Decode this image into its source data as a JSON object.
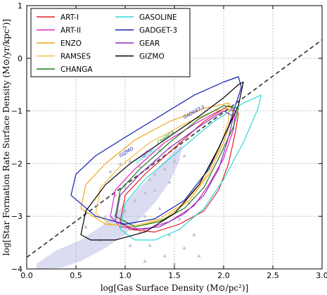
{
  "chart_data": {
    "type": "line",
    "xlabel": "log[Gas Surface Density (M⊙/pc²)]",
    "ylabel": "log[Star Formation Rate Surface Density (M⊙/yr/kpc²)]",
    "xlim": [
      0.0,
      3.0
    ],
    "ylim": [
      -4.0,
      1.0
    ],
    "xticks": [
      "0.0",
      "0.5",
      "1.0",
      "1.5",
      "2.0",
      "2.5",
      "3.0"
    ],
    "yticks": [
      "−4",
      "−3",
      "−2",
      "−1",
      "0",
      "1"
    ],
    "grid": true,
    "legend_position": "top-left",
    "reference_line": {
      "style": "dashed",
      "color": "#444444",
      "x": [
        0.0,
        3.0
      ],
      "y": [
        -3.78,
        0.35
      ]
    },
    "observations": {
      "color": "#aeb2e0",
      "shaded_region": [
        [
          0.1,
          -3.9
        ],
        [
          0.3,
          -3.65
        ],
        [
          0.55,
          -3.45
        ],
        [
          0.75,
          -3.2
        ],
        [
          0.95,
          -2.85
        ],
        [
          1.15,
          -2.45
        ],
        [
          1.35,
          -2.05
        ],
        [
          1.5,
          -1.75
        ],
        [
          1.58,
          -1.65
        ],
        [
          1.55,
          -1.95
        ],
        [
          1.45,
          -2.35
        ],
        [
          1.3,
          -2.75
        ],
        [
          1.15,
          -3.05
        ],
        [
          1.0,
          -3.35
        ],
        [
          0.8,
          -3.6
        ],
        [
          0.55,
          -3.85
        ],
        [
          0.35,
          -3.98
        ],
        [
          0.1,
          -4.0
        ]
      ],
      "triangles": [
        [
          0.85,
          -2.15
        ],
        [
          0.95,
          -2.0
        ],
        [
          1.05,
          -1.95
        ],
        [
          1.1,
          -2.25
        ],
        [
          1.15,
          -2.05
        ],
        [
          1.2,
          -1.85
        ],
        [
          1.25,
          -2.3
        ],
        [
          1.3,
          -1.95
        ],
        [
          1.35,
          -1.75
        ],
        [
          1.4,
          -2.1
        ],
        [
          1.45,
          -1.7
        ],
        [
          1.5,
          -1.95
        ],
        [
          1.55,
          -1.6
        ],
        [
          1.6,
          -1.85
        ],
        [
          1.2,
          -2.55
        ],
        [
          1.0,
          -2.45
        ],
        [
          0.9,
          -2.6
        ],
        [
          1.1,
          -2.7
        ],
        [
          1.3,
          -2.5
        ],
        [
          1.45,
          -2.35
        ],
        [
          1.0,
          -2.9
        ],
        [
          1.2,
          -3.0
        ],
        [
          0.95,
          -3.2
        ],
        [
          1.15,
          -3.3
        ],
        [
          1.35,
          -2.85
        ],
        [
          1.05,
          -3.55
        ],
        [
          1.25,
          -3.55
        ],
        [
          1.45,
          -3.35
        ],
        [
          1.55,
          -3.05
        ],
        [
          1.4,
          -3.75
        ],
        [
          1.2,
          -3.85
        ],
        [
          1.6,
          -3.6
        ],
        [
          1.5,
          -3.9
        ],
        [
          1.7,
          -3.35
        ],
        [
          1.75,
          -3.75
        ],
        [
          1.65,
          -2.75
        ],
        [
          0.8,
          -3.0
        ],
        [
          0.75,
          -3.45
        ],
        [
          0.6,
          -3.2
        ],
        [
          1.3,
          -2.2
        ]
      ]
    },
    "series": [
      {
        "name": "ART-I",
        "color": "#e0202a",
        "points": [
          [
            0.95,
            -3.1
          ],
          [
            1.0,
            -2.6
          ],
          [
            1.2,
            -2.2
          ],
          [
            1.5,
            -1.7
          ],
          [
            1.8,
            -1.2
          ],
          [
            2.05,
            -0.9
          ],
          [
            2.15,
            -1.05
          ],
          [
            2.12,
            -1.4
          ],
          [
            2.05,
            -2.0
          ],
          [
            1.95,
            -2.5
          ],
          [
            1.8,
            -2.9
          ],
          [
            1.55,
            -3.15
          ],
          [
            1.3,
            -3.3
          ],
          [
            1.05,
            -3.25
          ]
        ]
      },
      {
        "name": "ART-II",
        "color": "#e020c8",
        "points": [
          [
            0.85,
            -3.0
          ],
          [
            0.9,
            -2.5
          ],
          [
            1.1,
            -2.1
          ],
          [
            1.4,
            -1.6
          ],
          [
            1.75,
            -1.2
          ],
          [
            2.0,
            -0.95
          ],
          [
            2.12,
            -1.0
          ],
          [
            2.1,
            -1.35
          ],
          [
            2.0,
            -1.9
          ],
          [
            1.85,
            -2.4
          ],
          [
            1.7,
            -2.8
          ],
          [
            1.45,
            -3.1
          ],
          [
            1.2,
            -3.25
          ],
          [
            0.95,
            -3.2
          ]
        ]
      },
      {
        "name": "ENZO",
        "color": "#f2a51c",
        "points": [
          [
            0.55,
            -2.85
          ],
          [
            0.6,
            -2.4
          ],
          [
            0.8,
            -2.0
          ],
          [
            1.1,
            -1.55
          ],
          [
            1.45,
            -1.2
          ],
          [
            1.8,
            -0.95
          ],
          [
            2.05,
            -0.85
          ],
          [
            2.1,
            -1.05
          ],
          [
            2.0,
            -1.6
          ],
          [
            1.85,
            -2.2
          ],
          [
            1.65,
            -2.7
          ],
          [
            1.4,
            -3.05
          ],
          [
            1.1,
            -3.2
          ],
          [
            0.8,
            -3.15
          ]
        ]
      },
      {
        "name": "RAMSES",
        "color": "#f0c040",
        "points": [
          [
            0.7,
            -2.95
          ],
          [
            0.75,
            -2.45
          ],
          [
            0.95,
            -2.05
          ],
          [
            1.25,
            -1.6
          ],
          [
            1.6,
            -1.25
          ],
          [
            1.9,
            -1.0
          ],
          [
            2.05,
            -0.95
          ],
          [
            2.05,
            -1.2
          ],
          [
            1.95,
            -1.75
          ],
          [
            1.8,
            -2.3
          ],
          [
            1.6,
            -2.75
          ],
          [
            1.35,
            -3.05
          ],
          [
            1.05,
            -3.2
          ],
          [
            0.85,
            -3.15
          ]
        ]
      },
      {
        "name": "CHANGA",
        "color": "#1a7a1a",
        "points": [
          [
            0.9,
            -3.0
          ],
          [
            0.95,
            -2.5
          ],
          [
            1.15,
            -2.1
          ],
          [
            1.45,
            -1.6
          ],
          [
            1.75,
            -1.15
          ],
          [
            2.0,
            -0.9
          ],
          [
            2.15,
            -0.95
          ],
          [
            2.1,
            -1.3
          ],
          [
            1.95,
            -1.9
          ],
          [
            1.8,
            -2.45
          ],
          [
            1.6,
            -2.85
          ],
          [
            1.35,
            -3.1
          ],
          [
            1.1,
            -3.2
          ]
        ]
      },
      {
        "name": "GASOLINE",
        "color": "#30d8d8",
        "points": [
          [
            0.95,
            -3.25
          ],
          [
            1.0,
            -2.75
          ],
          [
            1.2,
            -2.3
          ],
          [
            1.55,
            -1.75
          ],
          [
            1.9,
            -1.2
          ],
          [
            2.2,
            -0.85
          ],
          [
            2.38,
            -0.7
          ],
          [
            2.35,
            -0.95
          ],
          [
            2.2,
            -1.6
          ],
          [
            2.0,
            -2.3
          ],
          [
            1.8,
            -2.85
          ],
          [
            1.55,
            -3.25
          ],
          [
            1.3,
            -3.45
          ],
          [
            1.1,
            -3.45
          ]
        ]
      },
      {
        "name": "GADGET-3",
        "color": "#1020b0",
        "points": [
          [
            0.45,
            -2.6
          ],
          [
            0.5,
            -2.2
          ],
          [
            0.7,
            -1.85
          ],
          [
            1.0,
            -1.5
          ],
          [
            1.35,
            -1.1
          ],
          [
            1.7,
            -0.7
          ],
          [
            2.0,
            -0.45
          ],
          [
            2.15,
            -0.35
          ],
          [
            2.18,
            -0.55
          ],
          [
            2.05,
            -1.3
          ],
          [
            1.85,
            -2.1
          ],
          [
            1.6,
            -2.7
          ],
          [
            1.3,
            -3.05
          ],
          [
            1.0,
            -3.15
          ],
          [
            0.7,
            -3.0
          ]
        ]
      },
      {
        "name": "GEAR",
        "color": "#8830b8",
        "points": [
          [
            0.9,
            -3.1
          ],
          [
            0.95,
            -2.6
          ],
          [
            1.15,
            -2.2
          ],
          [
            1.45,
            -1.7
          ],
          [
            1.75,
            -1.3
          ],
          [
            2.0,
            -1.0
          ],
          [
            2.1,
            -1.1
          ],
          [
            2.05,
            -1.5
          ],
          [
            1.95,
            -2.1
          ],
          [
            1.8,
            -2.6
          ],
          [
            1.6,
            -2.95
          ],
          [
            1.35,
            -3.2
          ],
          [
            1.1,
            -3.25
          ]
        ]
      },
      {
        "name": "GIZMO",
        "color": "#000000",
        "points": [
          [
            0.55,
            -3.35
          ],
          [
            0.6,
            -2.9
          ],
          [
            0.8,
            -2.4
          ],
          [
            1.05,
            -2.0
          ],
          [
            1.4,
            -1.55
          ],
          [
            1.75,
            -1.1
          ],
          [
            2.0,
            -0.75
          ],
          [
            2.15,
            -0.5
          ],
          [
            2.2,
            -0.45
          ],
          [
            2.15,
            -0.9
          ],
          [
            1.95,
            -1.7
          ],
          [
            1.75,
            -2.4
          ],
          [
            1.5,
            -2.95
          ],
          [
            1.2,
            -3.3
          ],
          [
            0.9,
            -3.45
          ],
          [
            0.65,
            -3.45
          ]
        ]
      }
    ],
    "inline_labels": [
      {
        "text": "GADGET-3",
        "color": "#1020b0",
        "x": 1.6,
        "y": -1.15,
        "angle": -28
      },
      {
        "text": "GIZMO",
        "color": "#1020b0",
        "x": 0.95,
        "y": -1.88,
        "angle": -30
      },
      {
        "text": "CHANGA",
        "color": "#1a7a1a",
        "x": 1.34,
        "y": -1.63,
        "angle": -35
      },
      {
        "text": "ART-II",
        "color": "#e020c8",
        "x": 1.17,
        "y": -1.9,
        "angle": -35
      },
      {
        "text": "GASOLINE",
        "color": "#30d8d8",
        "x": 1.12,
        "y": -2.0,
        "angle": -35
      }
    ]
  }
}
